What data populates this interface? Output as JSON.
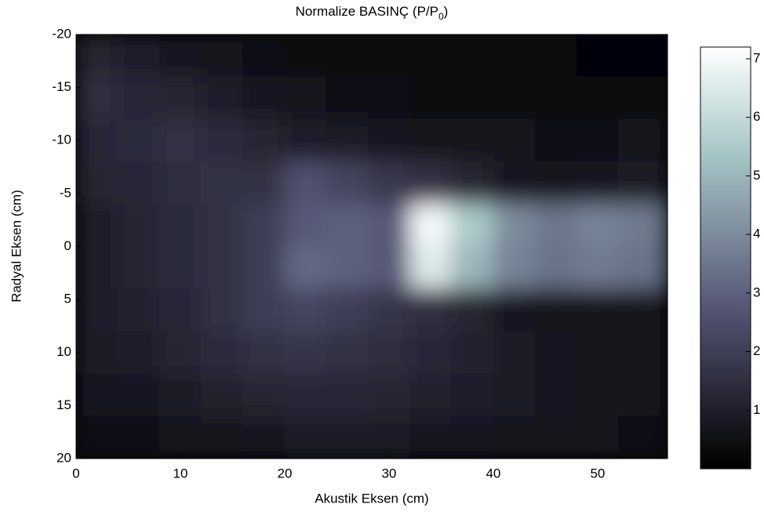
{
  "chart_data": {
    "type": "heatmap",
    "title": "Normalize BASINÇ (P/P",
    "title_subscript": "0",
    "title_end": ")",
    "xlabel": "Akustik Eksen (cm)",
    "ylabel": "Radyal Eksen (cm)",
    "x": [
      2,
      6,
      10,
      14,
      18,
      22,
      26,
      30,
      34,
      38,
      42,
      46,
      50,
      54
    ],
    "y": [
      -18,
      -14,
      -10,
      -6,
      -2,
      2,
      6,
      10,
      14,
      18
    ],
    "z": [
      [
        1.2,
        1.0,
        0.8,
        0.6,
        0.5,
        0.4,
        0.4,
        0.4,
        0.3,
        0.3,
        0.3,
        0.3,
        0.2,
        0.2
      ],
      [
        1.5,
        1.3,
        1.2,
        1.0,
        0.8,
        0.6,
        0.5,
        0.5,
        0.4,
        0.4,
        0.4,
        0.3,
        0.3,
        0.3
      ],
      [
        1.3,
        1.4,
        1.6,
        1.4,
        1.2,
        1.0,
        0.9,
        0.8,
        0.7,
        0.6,
        0.6,
        0.5,
        0.5,
        0.6
      ],
      [
        1.2,
        1.3,
        1.5,
        1.6,
        1.6,
        2.6,
        2.2,
        1.8,
        1.6,
        1.2,
        0.8,
        0.6,
        0.8,
        0.9
      ],
      [
        1.0,
        1.2,
        1.4,
        1.6,
        2.0,
        2.8,
        3.0,
        2.8,
        7.0,
        5.5,
        4.0,
        3.5,
        3.8,
        3.6
      ],
      [
        1.0,
        1.2,
        1.4,
        1.6,
        2.0,
        3.2,
        3.0,
        2.8,
        6.5,
        5.0,
        3.8,
        3.4,
        3.6,
        3.4
      ],
      [
        1.0,
        1.1,
        1.3,
        1.6,
        2.0,
        2.2,
        2.0,
        1.7,
        1.5,
        1.2,
        0.8,
        0.6,
        0.7,
        0.6
      ],
      [
        0.9,
        1.0,
        1.2,
        1.4,
        1.6,
        1.7,
        1.6,
        1.5,
        1.3,
        1.1,
        0.9,
        0.8,
        0.7,
        0.6
      ],
      [
        0.8,
        0.8,
        0.9,
        1.1,
        1.2,
        1.3,
        1.3,
        1.2,
        1.1,
        1.0,
        0.9,
        0.8,
        0.7,
        0.6
      ],
      [
        0.5,
        0.5,
        0.6,
        0.7,
        0.8,
        0.9,
        0.9,
        0.9,
        0.8,
        0.8,
        0.7,
        0.7,
        0.6,
        0.5
      ]
    ],
    "xlim": [
      0,
      56.7
    ],
    "ylim": [
      -20,
      20
    ],
    "y_reversed": true,
    "xticks": [
      0,
      10,
      20,
      30,
      40,
      50
    ],
    "yticks": [
      -20,
      -15,
      -10,
      -5,
      0,
      5,
      10,
      15,
      20
    ],
    "colormap": "bone",
    "clim": [
      0,
      7.2
    ],
    "cticks": [
      1,
      2,
      3,
      4,
      5,
      6,
      7
    ]
  }
}
